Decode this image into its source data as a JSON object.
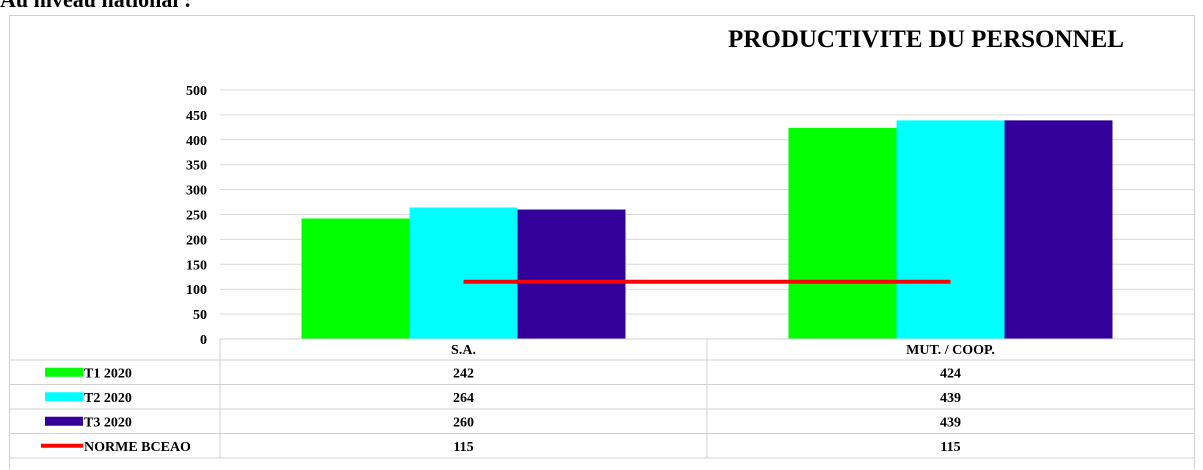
{
  "page_header": "Au niveau national :",
  "chart_data": {
    "type": "bar",
    "title": "PRODUCTIVITE DU PERSONNEL",
    "categories": [
      "S.A.",
      "MUT. / COOP."
    ],
    "series": [
      {
        "name": "T1 2020",
        "type": "bar",
        "color": "#00ff00",
        "values": [
          242,
          424
        ]
      },
      {
        "name": "T2 2020",
        "type": "bar",
        "color": "#00ffff",
        "values": [
          264,
          439
        ]
      },
      {
        "name": "T3 2020",
        "type": "bar",
        "color": "#330099",
        "values": [
          260,
          439
        ]
      },
      {
        "name": "NORME BCEAO",
        "type": "line",
        "color": "#ff0000",
        "values": [
          115,
          115
        ]
      }
    ],
    "yticks": [
      0,
      50,
      100,
      150,
      200,
      250,
      300,
      350,
      400,
      450,
      500
    ],
    "ylim": [
      0,
      500
    ],
    "grid": true,
    "legend": "data-table"
  }
}
